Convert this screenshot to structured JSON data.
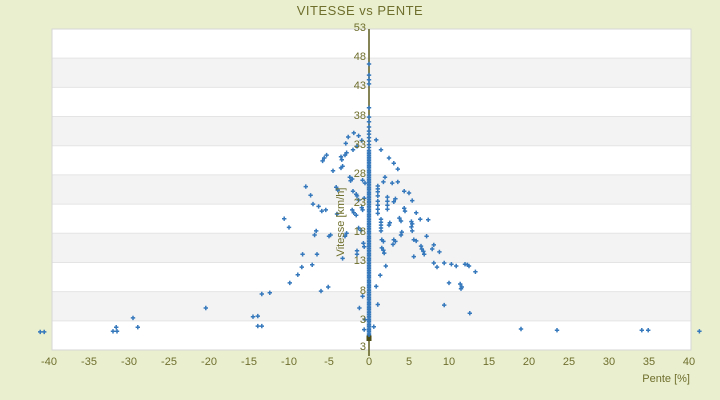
{
  "title": "VITESSE vs PENTE",
  "colors": {
    "background": "#eaefcf",
    "band_white": "#ffffff",
    "band_gray": "#f3f3f3",
    "band_edge": "#e4e4e4",
    "plot_border": "#d6d6d6",
    "axis_line": "#5c5c1e",
    "axis_end_square": "#4c4c14",
    "text": "#6f6f2d",
    "marker": "#3578bc"
  },
  "chart_data": {
    "type": "scatter",
    "title": "VITESSE vs PENTE",
    "xlabel": "Pente [%]",
    "ylabel": "Vitesse [km/h]",
    "xlim": [
      -40.5,
      40.3
    ],
    "ylim": [
      -2,
      53
    ],
    "x_ticks": [
      -40,
      -35,
      -30,
      -25,
      -20,
      -15,
      -10,
      -5,
      0,
      5,
      10,
      15,
      20,
      25,
      30,
      35,
      40
    ],
    "y_ticks": [
      53,
      48,
      43,
      38,
      33,
      28,
      23,
      18,
      13,
      8,
      3
    ],
    "y_axis_min_label": "3",
    "grid": "horizontal-bands",
    "legend": "none",
    "zero_column": {
      "pente": 0,
      "vitesse_min": 0.6,
      "vitesse_max": 32.2,
      "count": 110
    },
    "points": [
      [
        0,
        47.0
      ],
      [
        0,
        45.1
      ],
      [
        0,
        44.3
      ],
      [
        0,
        43.6
      ],
      [
        0,
        39.5
      ],
      [
        0,
        37.9
      ],
      [
        0,
        37.1
      ],
      [
        0,
        36.2
      ],
      [
        0,
        35.5
      ],
      [
        0,
        35.0
      ],
      [
        0,
        34.4
      ],
      [
        0,
        33.8
      ],
      [
        0,
        33.2
      ],
      [
        0,
        32.7
      ],
      [
        -1.3,
        34.7
      ],
      [
        -1.9,
        35.2
      ],
      [
        -2.6,
        34.5
      ],
      [
        -2.9,
        33.4
      ],
      [
        -0.9,
        33.9
      ],
      [
        -5.3,
        31.4
      ],
      [
        -5.6,
        30.9
      ],
      [
        -5.8,
        30.4
      ],
      [
        -3.5,
        31.1
      ],
      [
        -3.4,
        30.6
      ],
      [
        -3.0,
        31.4
      ],
      [
        -2.8,
        31.8
      ],
      [
        -2.0,
        32.3
      ],
      [
        -1.5,
        32.9
      ],
      [
        -3.3,
        29.5
      ],
      [
        -3.5,
        29.2
      ],
      [
        -4.5,
        28.7
      ],
      [
        -2.4,
        27.6
      ],
      [
        -2.1,
        27.3
      ],
      [
        -2.3,
        27.0
      ],
      [
        -4.1,
        25.9
      ],
      [
        -3.9,
        25.4
      ],
      [
        -2.0,
        25.2
      ],
      [
        -1.6,
        24.7
      ],
      [
        -1.5,
        24.4
      ],
      [
        -1.3,
        23.7
      ],
      [
        -0.8,
        27.1
      ],
      [
        -0.5,
        26.6
      ],
      [
        -0.6,
        24.0
      ],
      [
        -7.9,
        26.0
      ],
      [
        -7.3,
        24.5
      ],
      [
        -7.0,
        23.0
      ],
      [
        -6.3,
        22.6
      ],
      [
        -5.4,
        22.0
      ],
      [
        -5.9,
        21.8
      ],
      [
        -4.0,
        21.3
      ],
      [
        -2.1,
        22.0
      ],
      [
        -1.9,
        21.5
      ],
      [
        -1.6,
        21.1
      ],
      [
        -0.9,
        22.4
      ],
      [
        -0.8,
        22.0
      ],
      [
        -10.6,
        20.5
      ],
      [
        -10.0,
        19.0
      ],
      [
        -6.6,
        18.4
      ],
      [
        -4.8,
        17.7
      ],
      [
        -3.0,
        17.5
      ],
      [
        -2.8,
        18.0
      ],
      [
        -1.3,
        18.9
      ],
      [
        -1.0,
        18.5
      ],
      [
        -6.8,
        17.7
      ],
      [
        -5.0,
        17.5
      ],
      [
        -0.7,
        16.3
      ],
      [
        -0.6,
        15.7
      ],
      [
        -8.3,
        14.4
      ],
      [
        -6.5,
        14.4
      ],
      [
        -3.3,
        13.7
      ],
      [
        -1.5,
        15.0
      ],
      [
        -1.5,
        14.4
      ],
      [
        -8.4,
        12.2
      ],
      [
        -7.1,
        12.6
      ],
      [
        -8.9,
        10.9
      ],
      [
        -9.9,
        9.5
      ],
      [
        -5.1,
        8.8
      ],
      [
        -6.0,
        8.1
      ],
      [
        -13.4,
        7.6
      ],
      [
        -12.4,
        7.8
      ],
      [
        -14.5,
        3.7
      ],
      [
        -13.9,
        3.8
      ],
      [
        -13.9,
        2.1
      ],
      [
        -13.4,
        2.1
      ],
      [
        -20.4,
        5.2
      ],
      [
        -29.5,
        3.5
      ],
      [
        -28.9,
        1.9
      ],
      [
        -31.6,
        1.9
      ],
      [
        -32.0,
        1.2
      ],
      [
        -31.5,
        1.2
      ],
      [
        -41.1,
        1.1
      ],
      [
        -40.6,
        1.1
      ],
      [
        -0.8,
        7.2
      ],
      [
        -1.2,
        5.2
      ],
      [
        -0.5,
        3.2
      ],
      [
        -0.6,
        1.5
      ],
      [
        0.9,
        34.0
      ],
      [
        1.5,
        32.3
      ],
      [
        2.5,
        30.9
      ],
      [
        3.1,
        30.0
      ],
      [
        3.6,
        29.0
      ],
      [
        2.0,
        27.6
      ],
      [
        1.8,
        26.8
      ],
      [
        2.9,
        26.6
      ],
      [
        3.6,
        26.8
      ],
      [
        1.1,
        26.1
      ],
      [
        1.1,
        25.6
      ],
      [
        1.1,
        25.1
      ],
      [
        1.1,
        24.4
      ],
      [
        4.4,
        25.2
      ],
      [
        5.0,
        24.9
      ],
      [
        1.1,
        23.5
      ],
      [
        1.1,
        22.8
      ],
      [
        1.1,
        22.1
      ],
      [
        1.1,
        21.4
      ],
      [
        2.3,
        24.2
      ],
      [
        2.3,
        23.5
      ],
      [
        2.3,
        22.8
      ],
      [
        2.3,
        22.1
      ],
      [
        3.3,
        23.9
      ],
      [
        3.1,
        23.4
      ],
      [
        5.4,
        23.6
      ],
      [
        4.4,
        22.3
      ],
      [
        4.5,
        21.8
      ],
      [
        5.9,
        21.5
      ],
      [
        3.8,
        20.6
      ],
      [
        4.0,
        20.1
      ],
      [
        1.5,
        20.4
      ],
      [
        1.5,
        19.9
      ],
      [
        1.5,
        19.4
      ],
      [
        1.5,
        18.9
      ],
      [
        1.5,
        18.4
      ],
      [
        2.6,
        19.8
      ],
      [
        2.5,
        19.4
      ],
      [
        5.3,
        20.0
      ],
      [
        5.4,
        19.6
      ],
      [
        5.3,
        19.1
      ],
      [
        6.4,
        20.4
      ],
      [
        7.4,
        20.3
      ],
      [
        4.1,
        18.2
      ],
      [
        4.0,
        17.7
      ],
      [
        5.4,
        18.4
      ],
      [
        7.2,
        17.5
      ],
      [
        1.6,
        16.9
      ],
      [
        1.8,
        16.6
      ],
      [
        3.1,
        16.9
      ],
      [
        3.3,
        16.6
      ],
      [
        3.0,
        16.1
      ],
      [
        5.6,
        16.9
      ],
      [
        5.9,
        16.7
      ],
      [
        1.6,
        15.5
      ],
      [
        1.8,
        15.1
      ],
      [
        6.5,
        15.8
      ],
      [
        6.6,
        15.3
      ],
      [
        6.8,
        14.9
      ],
      [
        6.9,
        14.4
      ],
      [
        7.9,
        15.3
      ],
      [
        8.1,
        16.0
      ],
      [
        5.6,
        14.0
      ],
      [
        8.8,
        14.8
      ],
      [
        1.9,
        14.6
      ],
      [
        8.1,
        12.9
      ],
      [
        8.5,
        12.2
      ],
      [
        9.4,
        12.9
      ],
      [
        10.3,
        12.7
      ],
      [
        10.9,
        12.4
      ],
      [
        12.0,
        12.7
      ],
      [
        12.3,
        12.6
      ],
      [
        12.5,
        12.4
      ],
      [
        13.3,
        11.4
      ],
      [
        10.0,
        9.5
      ],
      [
        11.4,
        9.3
      ],
      [
        11.6,
        8.8
      ],
      [
        11.5,
        8.5
      ],
      [
        9.4,
        5.7
      ],
      [
        12.6,
        4.3
      ],
      [
        2.1,
        12.4
      ],
      [
        1.4,
        10.8
      ],
      [
        0.9,
        8.9
      ],
      [
        1.1,
        5.8
      ],
      [
        0.6,
        2.0
      ],
      [
        19.0,
        1.6
      ],
      [
        23.5,
        1.4
      ],
      [
        34.1,
        1.4
      ],
      [
        34.9,
        1.4
      ],
      [
        41.3,
        1.2
      ]
    ]
  }
}
